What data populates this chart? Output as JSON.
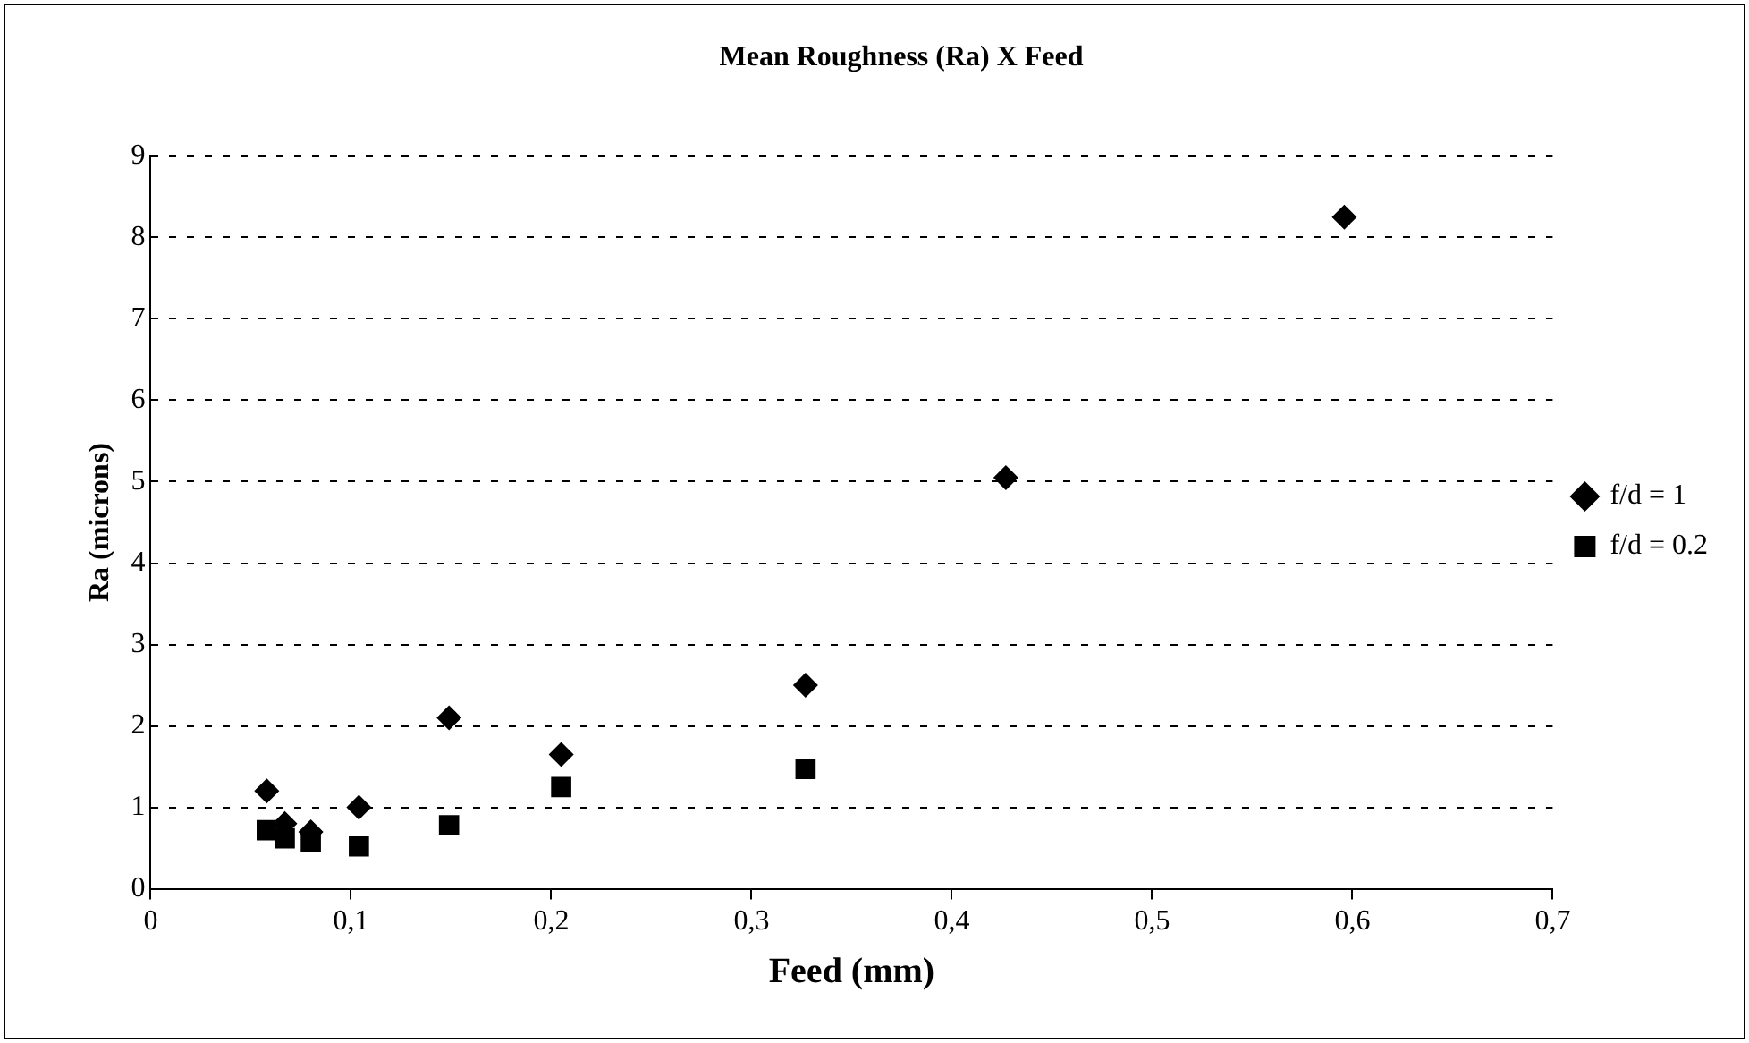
{
  "chart_data": {
    "type": "scatter",
    "title": "Mean Roughness (Ra) X Feed",
    "xlabel": "Feed (mm)",
    "ylabel": "Ra (microns)",
    "series": [
      {
        "name": "f/d = 1",
        "color": "#000000",
        "marker": "diamond",
        "x": [
          0.058,
          0.067,
          0.08,
          0.104,
          0.149,
          0.205,
          0.327,
          0.427,
          0.596
        ],
        "values": [
          1.2,
          0.8,
          0.7,
          1.0,
          2.1,
          1.65,
          2.5,
          5.05,
          8.25
        ]
      },
      {
        "name": "f/d = 0.2",
        "color": "#000000",
        "marker": "square",
        "x": [
          0.058,
          0.067,
          0.08,
          0.104,
          0.149,
          0.205,
          0.327
        ],
        "values": [
          0.72,
          0.62,
          0.57,
          0.52,
          0.78,
          1.25,
          1.47
        ]
      }
    ],
    "xlim": [
      0,
      0.7
    ],
    "xticks": [
      {
        "value": 0,
        "label": "0"
      },
      {
        "value": 0.1,
        "label": "0,1"
      },
      {
        "value": 0.2,
        "label": "0,2"
      },
      {
        "value": 0.3,
        "label": "0,3"
      },
      {
        "value": 0.4,
        "label": "0,4"
      },
      {
        "value": 0.5,
        "label": "0,5"
      },
      {
        "value": 0.6,
        "label": "0,6"
      },
      {
        "value": 0.7,
        "label": "0,7"
      }
    ],
    "ylim": [
      0,
      9
    ],
    "yticks": [
      0,
      1,
      2,
      3,
      4,
      5,
      6,
      7,
      8,
      9
    ],
    "grid": "y",
    "legend": "right",
    "line_style": "dashed"
  }
}
